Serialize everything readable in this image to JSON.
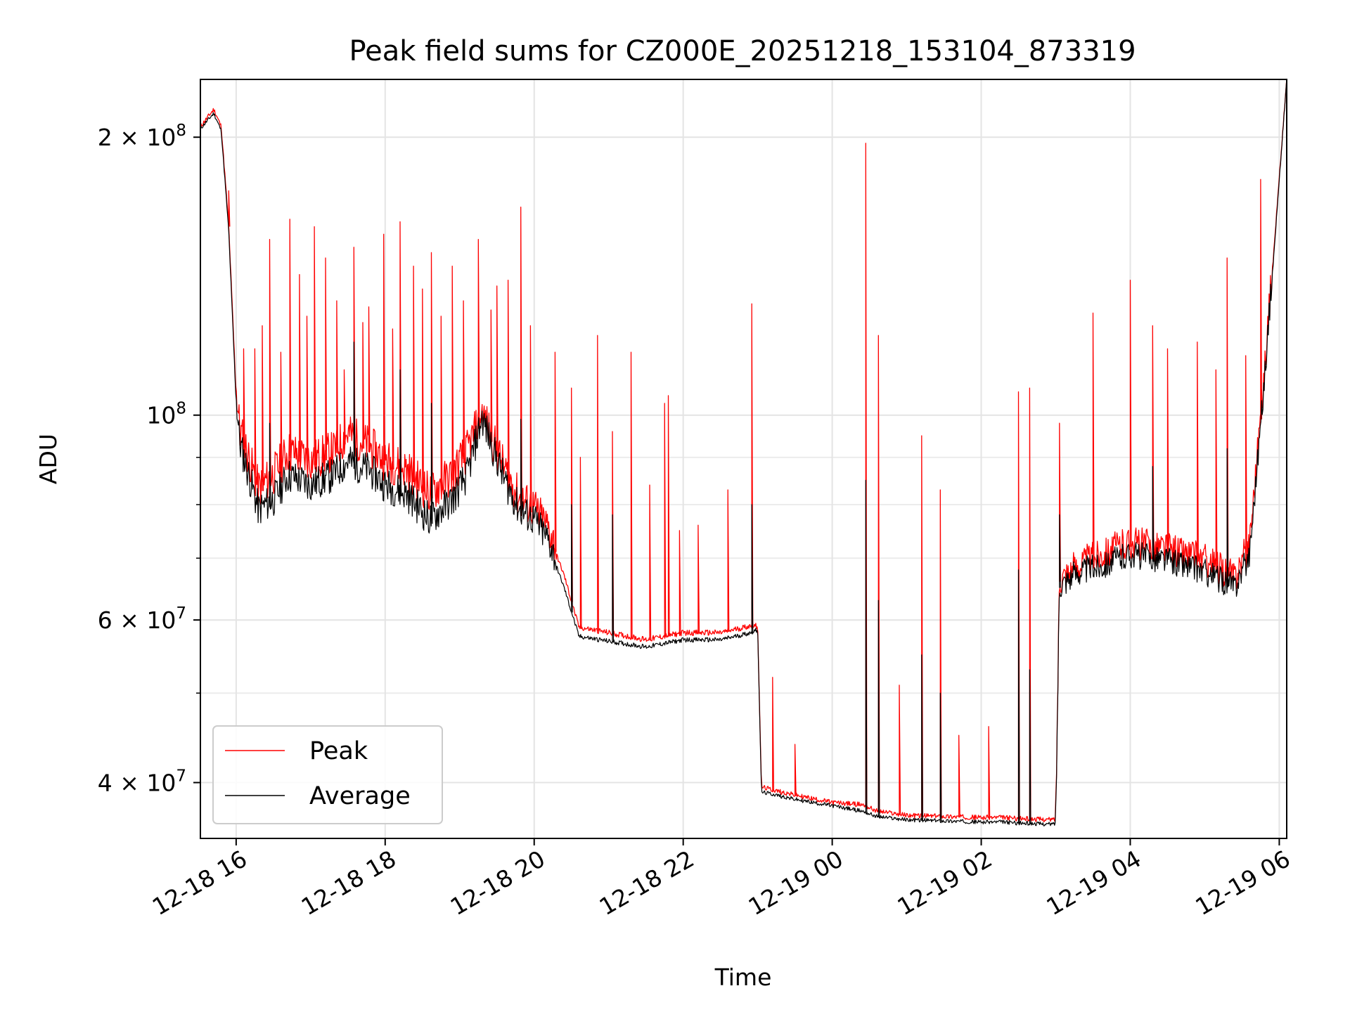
{
  "chart_data": {
    "type": "line",
    "title": "Peak field sums for CZ000E_20251218_153104_873319",
    "xlabel": "Time",
    "ylabel": "ADU",
    "yscale": "log",
    "grid": true,
    "legend_position": "lower-left",
    "xlim_hours": [
      -0.48,
      14.1
    ],
    "ylim": [
      34800000,
      231000000
    ],
    "x_ticks": [
      {
        "hour": 0,
        "label": "12-18 16"
      },
      {
        "hour": 2,
        "label": "12-18 18"
      },
      {
        "hour": 4,
        "label": "12-18 20"
      },
      {
        "hour": 6,
        "label": "12-18 22"
      },
      {
        "hour": 8,
        "label": "12-19 00"
      },
      {
        "hour": 10,
        "label": "12-19 02"
      },
      {
        "hour": 12,
        "label": "12-19 04"
      },
      {
        "hour": 14,
        "label": "12-19 06"
      }
    ],
    "y_ticks": [
      {
        "value": 200000000,
        "base": "2 × 10",
        "exp": "8"
      },
      {
        "value": 100000000,
        "base": "10",
        "exp": "8"
      },
      {
        "value": 60000000,
        "base": "6 × 10",
        "exp": "7"
      },
      {
        "value": 40000000,
        "base": "4 × 10",
        "exp": "7"
      }
    ],
    "y_minor_ticks": [
      30000000,
      50000000,
      70000000,
      80000000,
      90000000
    ],
    "series": [
      {
        "name": "Peak",
        "color": "#ff0000",
        "x_hours": [
          -0.48,
          -0.3,
          -0.2,
          -0.1,
          0.0,
          0.05,
          0.3,
          0.5,
          0.7,
          1.0,
          1.3,
          1.5,
          1.8,
          2.0,
          2.3,
          2.6,
          2.9,
          3.1,
          3.3,
          3.6,
          3.8,
          4.0,
          4.2,
          4.4,
          4.6,
          5.0,
          5.5,
          6.0,
          6.5,
          6.9,
          7.0,
          7.05,
          7.2,
          7.5,
          8.0,
          8.4,
          8.6,
          9.0,
          9.5,
          10.0,
          10.3,
          10.5,
          10.95,
          11.0,
          11.05,
          11.3,
          11.6,
          12.0,
          12.5,
          13.0,
          13.4,
          13.6,
          13.8,
          14.1
        ],
        "values": [
          205000000,
          214000000,
          205000000,
          160000000,
          105000000,
          95000000,
          82000000,
          85000000,
          90000000,
          88000000,
          90000000,
          94000000,
          91000000,
          88000000,
          86000000,
          81000000,
          85000000,
          90000000,
          99000000,
          86000000,
          80000000,
          78000000,
          74000000,
          67000000,
          58800000,
          58000000,
          57000000,
          58000000,
          58000000,
          59000000,
          59000000,
          39500000,
          39200000,
          38700000,
          38000000,
          37800000,
          37200000,
          36800000,
          36700000,
          36600000,
          36600000,
          36500000,
          36400000,
          36500000,
          66000000,
          68000000,
          70000000,
          72000000,
          71000000,
          69000000,
          66000000,
          72000000,
          110000000,
          231000000
        ],
        "spikes": [
          {
            "hour": -0.1,
            "value": 175000000
          },
          {
            "hour": 0.1,
            "value": 118000000
          },
          {
            "hour": 0.25,
            "value": 118000000
          },
          {
            "hour": 0.35,
            "value": 125000000
          },
          {
            "hour": 0.45,
            "value": 155000000
          },
          {
            "hour": 0.6,
            "value": 117000000
          },
          {
            "hour": 0.72,
            "value": 163000000
          },
          {
            "hour": 0.85,
            "value": 142000000
          },
          {
            "hour": 0.95,
            "value": 128000000
          },
          {
            "hour": 1.05,
            "value": 160000000
          },
          {
            "hour": 1.2,
            "value": 148000000
          },
          {
            "hour": 1.35,
            "value": 133000000
          },
          {
            "hour": 1.45,
            "value": 112000000
          },
          {
            "hour": 1.58,
            "value": 152000000
          },
          {
            "hour": 1.7,
            "value": 126000000
          },
          {
            "hour": 1.78,
            "value": 131000000
          },
          {
            "hour": 1.98,
            "value": 157000000
          },
          {
            "hour": 2.1,
            "value": 124000000
          },
          {
            "hour": 2.2,
            "value": 162000000
          },
          {
            "hour": 2.38,
            "value": 145000000
          },
          {
            "hour": 2.5,
            "value": 137000000
          },
          {
            "hour": 2.62,
            "value": 150000000
          },
          {
            "hour": 2.75,
            "value": 128000000
          },
          {
            "hour": 2.9,
            "value": 145000000
          },
          {
            "hour": 3.05,
            "value": 133000000
          },
          {
            "hour": 3.25,
            "value": 155000000
          },
          {
            "hour": 3.42,
            "value": 130000000
          },
          {
            "hour": 3.5,
            "value": 138000000
          },
          {
            "hour": 3.65,
            "value": 140000000
          },
          {
            "hour": 3.82,
            "value": 168000000
          },
          {
            "hour": 3.95,
            "value": 125000000
          },
          {
            "hour": 4.28,
            "value": 117000000
          },
          {
            "hour": 4.5,
            "value": 107000000
          },
          {
            "hour": 4.62,
            "value": 90000000
          },
          {
            "hour": 4.85,
            "value": 122000000
          },
          {
            "hour": 5.05,
            "value": 96000000
          },
          {
            "hour": 5.3,
            "value": 117000000
          },
          {
            "hour": 5.55,
            "value": 84000000
          },
          {
            "hour": 5.75,
            "value": 103000000
          },
          {
            "hour": 5.8,
            "value": 105000000
          },
          {
            "hour": 5.95,
            "value": 75000000
          },
          {
            "hour": 6.2,
            "value": 76000000
          },
          {
            "hour": 6.6,
            "value": 83000000
          },
          {
            "hour": 6.92,
            "value": 132000000
          },
          {
            "hour": 7.2,
            "value": 52000000
          },
          {
            "hour": 7.5,
            "value": 44000000
          },
          {
            "hour": 8.45,
            "value": 197000000
          },
          {
            "hour": 8.62,
            "value": 122000000
          },
          {
            "hour": 8.9,
            "value": 51000000
          },
          {
            "hour": 9.2,
            "value": 95000000
          },
          {
            "hour": 9.45,
            "value": 83000000
          },
          {
            "hour": 9.7,
            "value": 45000000
          },
          {
            "hour": 10.1,
            "value": 46000000
          },
          {
            "hour": 10.5,
            "value": 106000000
          },
          {
            "hour": 10.65,
            "value": 107000000
          },
          {
            "hour": 11.05,
            "value": 98000000
          },
          {
            "hour": 11.5,
            "value": 129000000
          },
          {
            "hour": 12.0,
            "value": 140000000
          },
          {
            "hour": 12.3,
            "value": 125000000
          },
          {
            "hour": 12.5,
            "value": 118000000
          },
          {
            "hour": 12.9,
            "value": 120000000
          },
          {
            "hour": 13.15,
            "value": 112000000
          },
          {
            "hour": 13.3,
            "value": 148000000
          },
          {
            "hour": 13.55,
            "value": 116000000
          },
          {
            "hour": 13.75,
            "value": 180000000
          }
        ]
      },
      {
        "name": "Average",
        "color": "#000000",
        "x_hours": [
          -0.48,
          -0.3,
          -0.2,
          -0.1,
          0.0,
          0.05,
          0.3,
          0.5,
          0.7,
          1.0,
          1.3,
          1.5,
          1.8,
          2.0,
          2.3,
          2.6,
          2.9,
          3.1,
          3.3,
          3.6,
          3.8,
          4.0,
          4.2,
          4.4,
          4.6,
          5.0,
          5.5,
          6.0,
          6.5,
          6.9,
          7.0,
          7.05,
          7.2,
          7.5,
          8.0,
          8.4,
          8.6,
          9.0,
          9.5,
          10.0,
          10.3,
          10.5,
          10.95,
          11.0,
          11.05,
          11.3,
          11.6,
          12.0,
          12.5,
          13.0,
          13.4,
          13.6,
          13.8,
          14.1
        ],
        "values": [
          204000000,
          212000000,
          203000000,
          158000000,
          103000000,
          92000000,
          78000000,
          80000000,
          85000000,
          83000000,
          85000000,
          88000000,
          86000000,
          83000000,
          81000000,
          76000000,
          80000000,
          85000000,
          98000000,
          84000000,
          78000000,
          76000000,
          72000000,
          65000000,
          57500000,
          56800000,
          56000000,
          57000000,
          57000000,
          58000000,
          58500000,
          39000000,
          38800000,
          38300000,
          37700000,
          37200000,
          36700000,
          36400000,
          36300000,
          36200000,
          36200000,
          36100000,
          36000000,
          36100000,
          65000000,
          67000000,
          68000000,
          70000000,
          69000000,
          67000000,
          64500000,
          70000000,
          108000000,
          231000000
        ],
        "spikes": [
          {
            "hour": 0.45,
            "value": 98000000
          },
          {
            "hour": 1.58,
            "value": 120000000
          },
          {
            "hour": 2.2,
            "value": 112000000
          },
          {
            "hour": 2.62,
            "value": 103000000
          },
          {
            "hour": 3.82,
            "value": 99000000
          },
          {
            "hour": 4.5,
            "value": 80000000
          },
          {
            "hour": 5.05,
            "value": 78000000
          },
          {
            "hour": 6.92,
            "value": 80000000
          },
          {
            "hour": 8.45,
            "value": 85000000
          },
          {
            "hour": 8.62,
            "value": 63000000
          },
          {
            "hour": 9.2,
            "value": 55000000
          },
          {
            "hour": 9.45,
            "value": 50000000
          },
          {
            "hour": 10.5,
            "value": 68000000
          },
          {
            "hour": 10.65,
            "value": 53000000
          },
          {
            "hour": 11.05,
            "value": 78000000
          },
          {
            "hour": 12.3,
            "value": 88000000
          },
          {
            "hour": 13.3,
            "value": 92000000
          }
        ]
      }
    ]
  }
}
